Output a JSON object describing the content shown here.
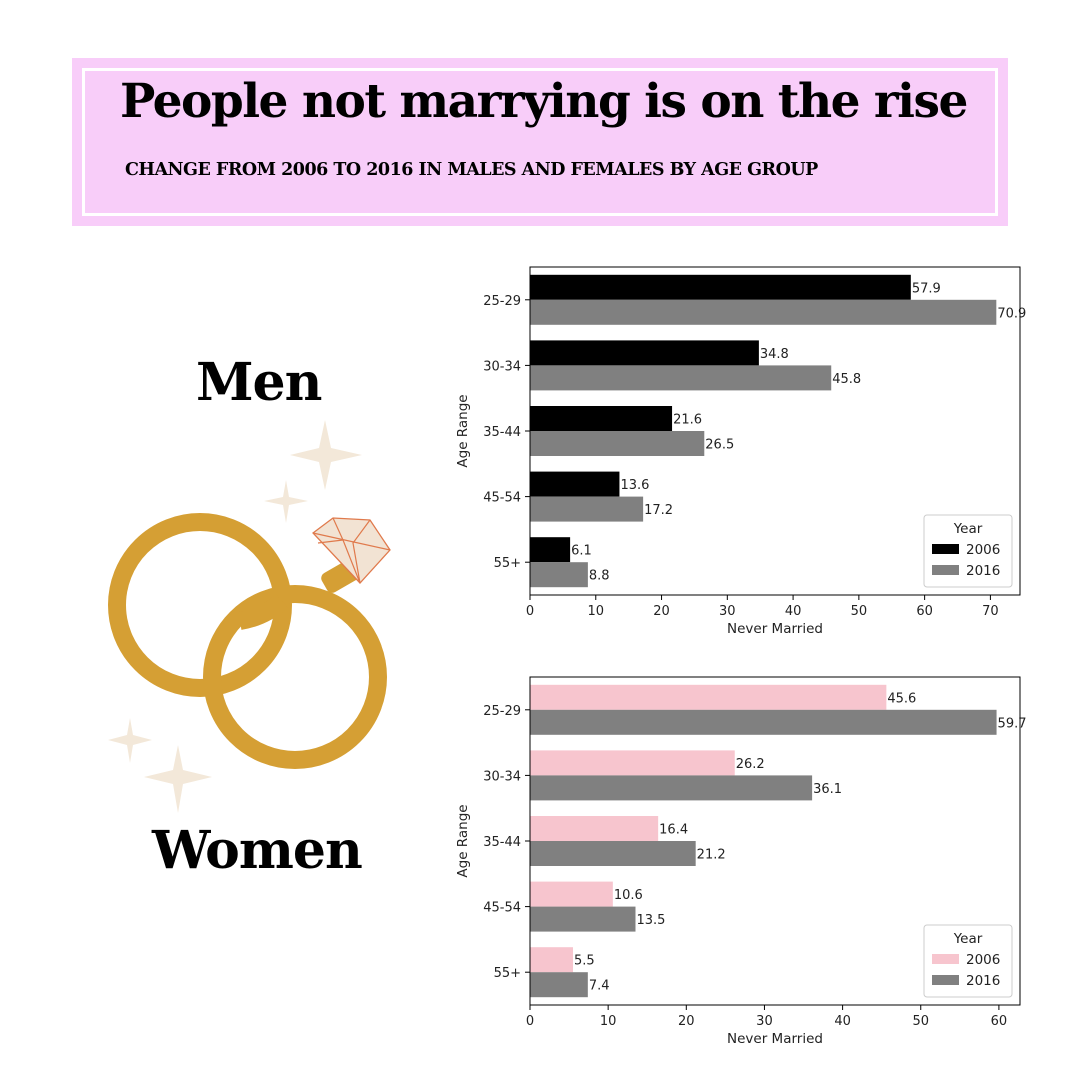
{
  "header": {
    "title": "People not marrying is on the rise",
    "subtitle": "CHANGE FROM 2006 TO 2016 IN MALES AND FEMALES BY AGE GROUP"
  },
  "labels": {
    "men": "Men",
    "women": "Women"
  },
  "chart_data": [
    {
      "type": "bar",
      "orientation": "horizontal",
      "group": "Men",
      "categories": [
        "25-29",
        "30-34",
        "35-44",
        "45-54",
        "55+"
      ],
      "series": [
        {
          "name": "2006",
          "color": "#000000",
          "values": [
            57.9,
            34.8,
            21.6,
            13.6,
            6.1
          ]
        },
        {
          "name": "2016",
          "color": "#808080",
          "values": [
            70.9,
            45.8,
            26.5,
            17.2,
            8.8
          ]
        }
      ],
      "xlabel": "Never Married",
      "ylabel": "Age Range",
      "xlim": [
        0,
        74.5
      ],
      "xticks": [
        0,
        10,
        20,
        30,
        40,
        50,
        60,
        70
      ],
      "legend_title": "Year",
      "legend_position": "lower-right",
      "grid": false
    },
    {
      "type": "bar",
      "orientation": "horizontal",
      "group": "Women",
      "categories": [
        "25-29",
        "30-34",
        "35-44",
        "45-54",
        "55+"
      ],
      "series": [
        {
          "name": "2006",
          "color": "#f7c5ce",
          "values": [
            45.6,
            26.2,
            16.4,
            10.6,
            5.5
          ]
        },
        {
          "name": "2016",
          "color": "#808080",
          "values": [
            59.7,
            36.1,
            21.2,
            13.5,
            7.4
          ]
        }
      ],
      "xlabel": "Never Married",
      "ylabel": "Age Range",
      "xlim": [
        0,
        62.7
      ],
      "xticks": [
        0,
        10,
        20,
        30,
        40,
        50,
        60
      ],
      "legend_title": "Year",
      "legend_position": "lower-right",
      "grid": false
    }
  ]
}
